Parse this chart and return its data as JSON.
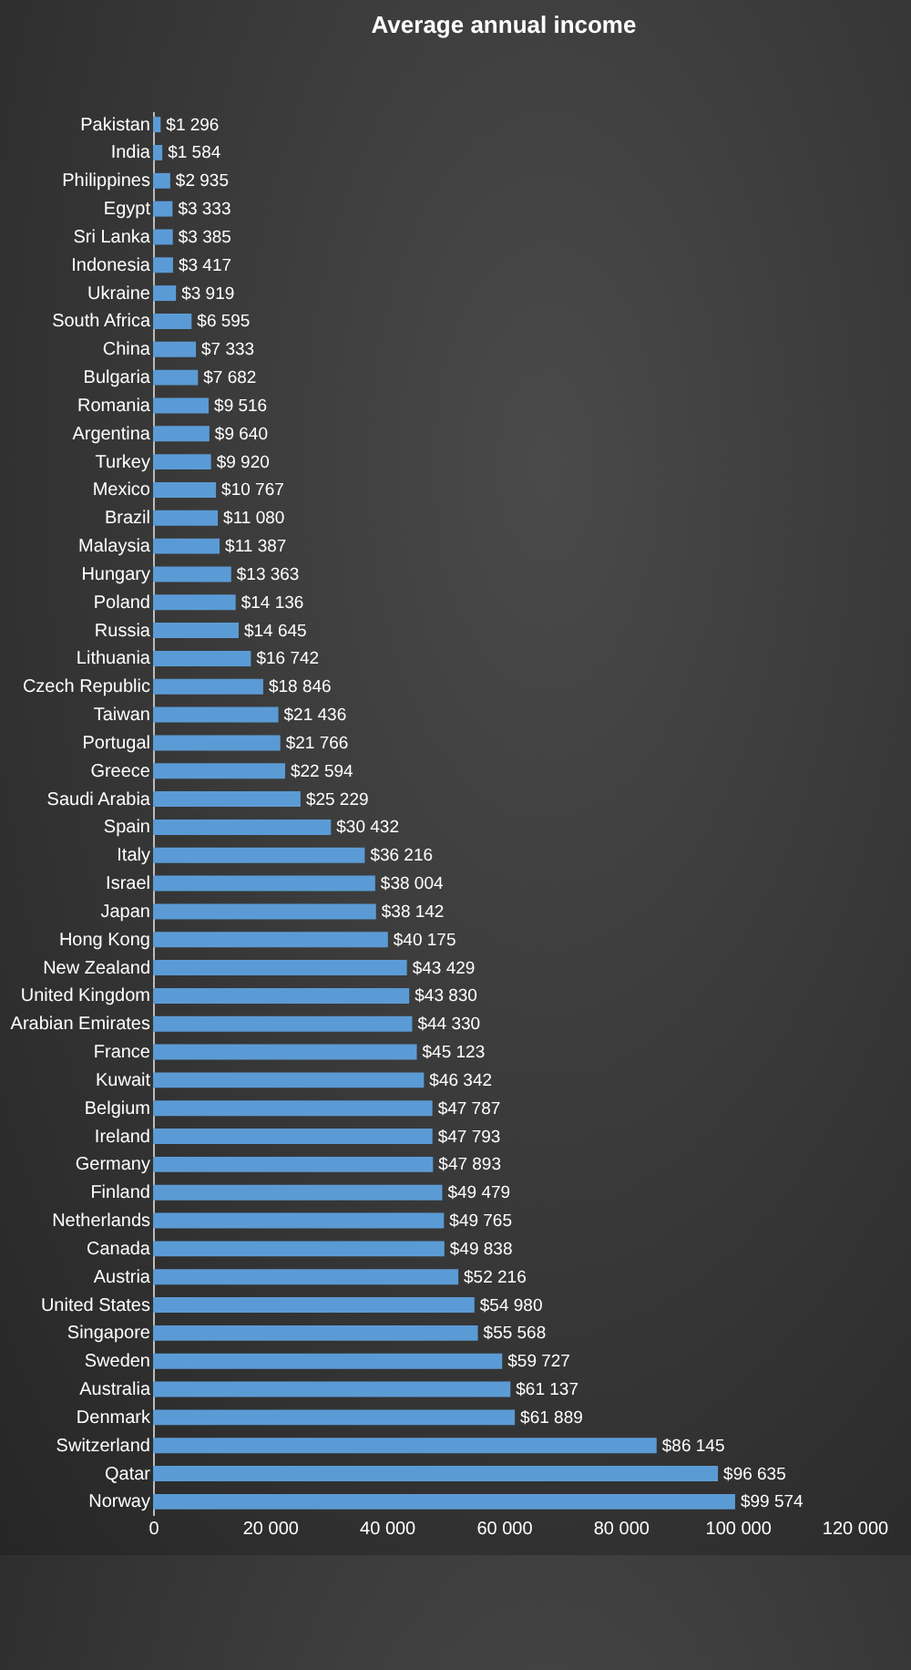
{
  "chart_data": {
    "type": "bar",
    "orientation": "horizontal",
    "title": "Average annual income",
    "categories": [
      "Pakistan",
      "India",
      "Philippines",
      "Egypt",
      "Sri Lanka",
      "Indonesia",
      "Ukraine",
      "South Africa",
      "China",
      "Bulgaria",
      "Romania",
      "Argentina",
      "Turkey",
      "Mexico",
      "Brazil",
      "Malaysia",
      "Hungary",
      "Poland",
      "Russia",
      "Lithuania",
      "Czech Republic",
      "Taiwan",
      "Portugal",
      "Greece",
      "Saudi Arabia",
      "Spain",
      "Italy",
      "Israel",
      "Japan",
      "Hong Kong",
      "New Zealand",
      "United Kingdom",
      "Arabian Emirates",
      "France",
      "Kuwait",
      "Belgium",
      "Ireland",
      "Germany",
      "Finland",
      "Netherlands",
      "Canada",
      "Austria",
      "United States",
      "Singapore",
      "Sweden",
      "Australia",
      "Denmark",
      "Switzerland",
      "Qatar",
      "Norway"
    ],
    "values": [
      1296,
      1584,
      2935,
      3333,
      3385,
      3417,
      3919,
      6595,
      7333,
      7682,
      9516,
      9640,
      9920,
      10767,
      11080,
      11387,
      13363,
      14136,
      14645,
      16742,
      18846,
      21436,
      21766,
      22594,
      25229,
      30432,
      36216,
      38004,
      38142,
      40175,
      43429,
      43830,
      44330,
      45123,
      46342,
      47787,
      47793,
      47893,
      49479,
      49765,
      49838,
      52216,
      54980,
      55568,
      59727,
      61137,
      61889,
      86145,
      96635,
      99574
    ],
    "value_labels": [
      "$1 296",
      "$1 584",
      "$2 935",
      "$3 333",
      "$3 385",
      "$3 417",
      "$3 919",
      "$6 595",
      "$7 333",
      "$7 682",
      "$9 516",
      "$9 640",
      "$9 920",
      "$10 767",
      "$11 080",
      "$11 387",
      "$13 363",
      "$14 136",
      "$14 645",
      "$16 742",
      "$18 846",
      "$21 436",
      "$21 766",
      "$22 594",
      "$25 229",
      "$30 432",
      "$36 216",
      "$38 004",
      "$38 142",
      "$40 175",
      "$43 429",
      "$43 830",
      "$44 330",
      "$45 123",
      "$46 342",
      "$47 787",
      "$47 793",
      "$47 893",
      "$49 479",
      "$49 765",
      "$49 838",
      "$52 216",
      "$54 980",
      "$55 568",
      "$59 727",
      "$61 137",
      "$61 889",
      "$86 145",
      "$96 635",
      "$99 574"
    ],
    "color": "#5b9bd5",
    "xlim": [
      0,
      120000
    ],
    "xticks": [
      0,
      {
        "value": 20000,
        "label": "20 000"
      },
      {
        "value": 40000,
        "label": "40 000"
      },
      {
        "value": 60000,
        "label": "60 000"
      },
      {
        "value": 80000,
        "label": "80 000"
      },
      {
        "value": 100000,
        "label": "100 000"
      },
      {
        "value": 120000,
        "label": "120 000"
      }
    ]
  }
}
